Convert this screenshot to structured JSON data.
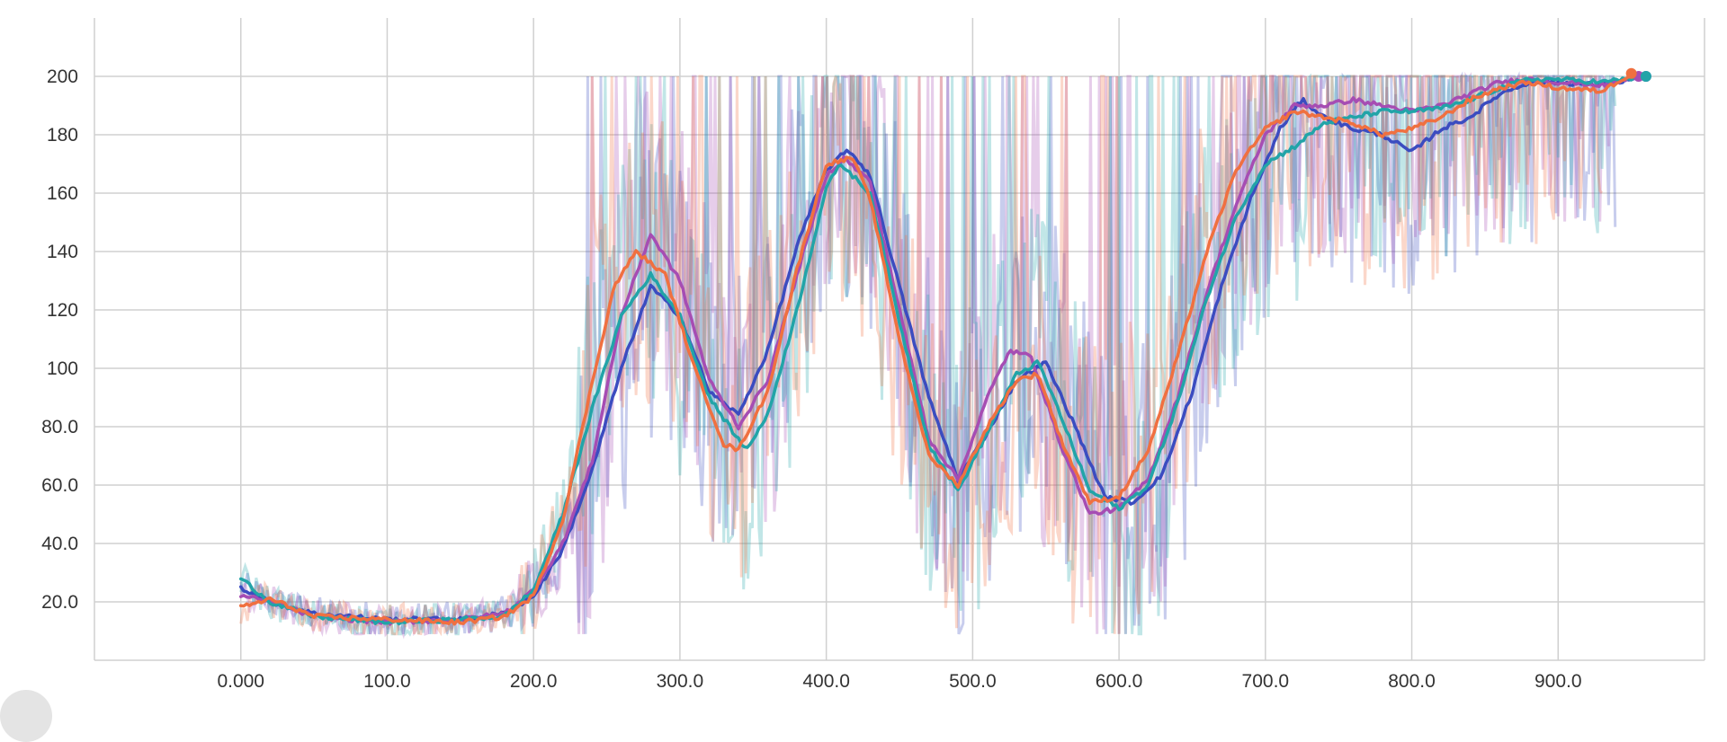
{
  "chart_data": {
    "type": "line",
    "title": "",
    "xlabel": "",
    "ylabel": "",
    "xlim": [
      -100,
      1000
    ],
    "ylim": [
      0,
      220
    ],
    "x_ticks": [
      0,
      100,
      200,
      300,
      400,
      500,
      600,
      700,
      800,
      900
    ],
    "x_tick_labels": [
      "0.000",
      "100.0",
      "200.0",
      "300.0",
      "400.0",
      "500.0",
      "600.0",
      "700.0",
      "800.0",
      "900.0"
    ],
    "y_ticks": [
      20,
      40,
      60,
      80,
      100,
      120,
      140,
      160,
      180,
      200
    ],
    "y_tick_labels": [
      "20.0",
      "40.0",
      "60.0",
      "80.0",
      "100",
      "120",
      "140",
      "160",
      "180",
      "200"
    ],
    "grid": true,
    "legend": "none",
    "series": [
      {
        "color": "#3b4cc0",
        "x": [
          0,
          20,
          50,
          100,
          150,
          180,
          200,
          220,
          240,
          260,
          280,
          300,
          320,
          340,
          360,
          380,
          400,
          415,
          430,
          450,
          470,
          490,
          510,
          530,
          550,
          570,
          590,
          610,
          630,
          650,
          670,
          690,
          710,
          725,
          740,
          760,
          780,
          800,
          820,
          840,
          860,
          880,
          900,
          930,
          960
        ],
        "y": [
          25,
          20,
          16,
          14,
          14,
          16,
          22,
          38,
          65,
          100,
          128,
          118,
          92,
          84,
          106,
          142,
          168,
          175,
          166,
          128,
          90,
          62,
          78,
          96,
          102,
          80,
          56,
          54,
          64,
          92,
          128,
          158,
          182,
          192,
          186,
          182,
          180,
          174,
          182,
          186,
          194,
          198,
          198,
          197,
          200
        ]
      },
      {
        "color": "#a64db3",
        "x": [
          0,
          20,
          50,
          100,
          150,
          180,
          200,
          220,
          240,
          260,
          280,
          300,
          320,
          340,
          360,
          380,
          400,
          412,
          430,
          450,
          470,
          490,
          510,
          525,
          540,
          560,
          580,
          600,
          620,
          640,
          660,
          680,
          700,
          720,
          740,
          760,
          780,
          800,
          820,
          840,
          860,
          880,
          900,
          930,
          955
        ],
        "y": [
          22,
          20,
          15,
          13,
          14,
          16,
          24,
          40,
          68,
          118,
          146,
          130,
          96,
          80,
          96,
          132,
          166,
          172,
          164,
          120,
          76,
          62,
          90,
          106,
          104,
          74,
          50,
          52,
          62,
          90,
          126,
          156,
          180,
          190,
          190,
          192,
          190,
          188,
          190,
          194,
          198,
          199,
          198,
          197,
          200
        ]
      },
      {
        "color": "#22a4a8",
        "x": [
          0,
          20,
          50,
          100,
          150,
          180,
          200,
          220,
          240,
          260,
          280,
          300,
          320,
          345,
          360,
          380,
          400,
          410,
          430,
          450,
          470,
          490,
          510,
          530,
          545,
          560,
          580,
          600,
          620,
          640,
          660,
          680,
          700,
          720,
          740,
          760,
          780,
          800,
          820,
          840,
          860,
          880,
          900,
          930,
          960
        ],
        "y": [
          28,
          20,
          15,
          13,
          14,
          15,
          24,
          50,
          86,
          118,
          132,
          118,
          90,
          72,
          84,
          120,
          162,
          170,
          160,
          116,
          74,
          58,
          78,
          98,
          102,
          84,
          58,
          52,
          60,
          88,
          124,
          152,
          170,
          176,
          184,
          186,
          188,
          188,
          189,
          192,
          196,
          199,
          199,
          198,
          200
        ]
      },
      {
        "color": "#f07040",
        "x": [
          0,
          20,
          50,
          100,
          150,
          180,
          200,
          220,
          240,
          255,
          270,
          290,
          310,
          330,
          340,
          360,
          380,
          400,
          418,
          430,
          450,
          470,
          490,
          510,
          530,
          545,
          560,
          580,
          600,
          620,
          640,
          660,
          680,
          700,
          720,
          740,
          760,
          780,
          800,
          820,
          840,
          860,
          880,
          900,
          930,
          950
        ],
        "y": [
          18,
          21,
          15,
          14,
          13,
          15,
          22,
          48,
          95,
          128,
          140,
          132,
          100,
          74,
          72,
          92,
          134,
          170,
          172,
          158,
          110,
          70,
          60,
          80,
          96,
          98,
          76,
          54,
          56,
          72,
          104,
          140,
          168,
          182,
          188,
          186,
          184,
          180,
          182,
          186,
          192,
          196,
          198,
          196,
          195,
          201
        ]
      }
    ]
  }
}
